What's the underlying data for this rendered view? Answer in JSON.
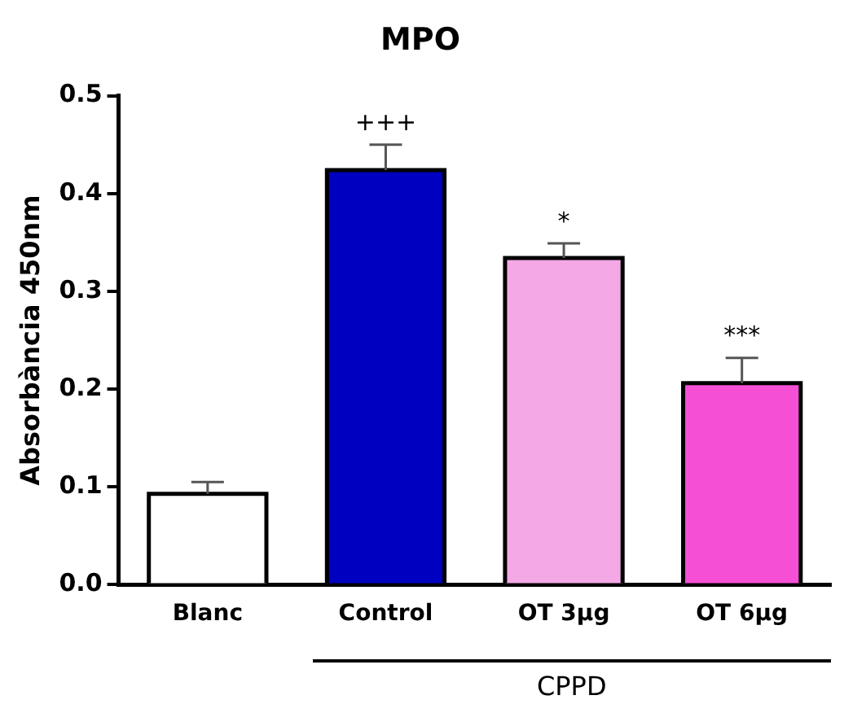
{
  "chart_data": {
    "type": "bar",
    "title": "MPO",
    "ylabel": "Absorbància 450nm",
    "categories": [
      "Blanc",
      "Control",
      "OT 3µg",
      "OT 6µg"
    ],
    "values": [
      0.093,
      0.424,
      0.334,
      0.206
    ],
    "colors": [
      "#ffffff",
      "#0000c0",
      "#f5a8e6",
      "#f550d5"
    ],
    "errors": [
      [
        0.093,
        0.105
      ],
      [
        0.424,
        0.45
      ],
      [
        0.334,
        0.349
      ],
      [
        0.206,
        0.232
      ]
    ],
    "ylim": [
      0,
      0.5
    ],
    "yticks": [
      {
        "value": 0,
        "label": "0.0"
      },
      {
        "value": 0.1,
        "label": "0.1"
      },
      {
        "value": 0.2,
        "label": "0.2"
      },
      {
        "value": 0.3,
        "label": "0.3"
      },
      {
        "value": 0.4,
        "label": "0.4"
      },
      {
        "value": 0.5,
        "label": "0.5"
      }
    ],
    "grid": false,
    "legend": false,
    "annotations": [
      {
        "text": "+++",
        "x": "Control",
        "y": 0.45
      },
      {
        "text": "*",
        "x": "OT 3µg",
        "y": 0.349
      },
      {
        "text": "***",
        "x": "OT 6µg",
        "y": 0.232
      },
      "CPPD"
    ]
  }
}
